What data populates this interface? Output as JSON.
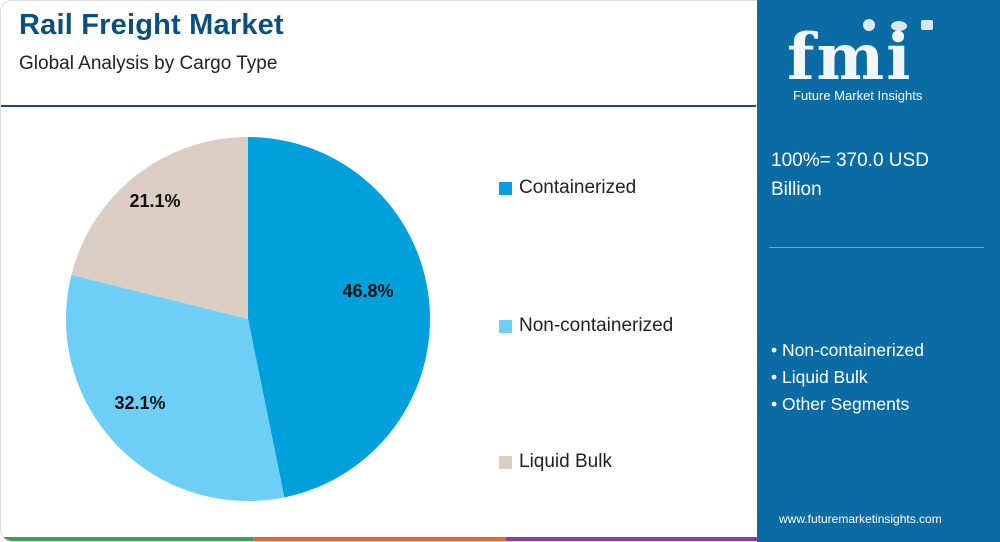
{
  "header": {
    "title": "Rail Freight Market",
    "subtitle": "Global Analysis by Cargo Type"
  },
  "chart_data": {
    "type": "pie",
    "title": "Rail Freight Market",
    "subtitle": "Global Analysis by Cargo Type",
    "categories": [
      "Containerized",
      "Non-containerized",
      "Liquid Bulk"
    ],
    "values": [
      46.8,
      32.1,
      21.1
    ],
    "value_labels": [
      "46.8%",
      "32.1%",
      "21.1%"
    ],
    "colors": [
      "#00a0dc",
      "#6dcff6",
      "#d9cdc4"
    ],
    "legend_position": "right",
    "start": "top, clockwise"
  },
  "sidebar": {
    "brand_mark": "fmi",
    "brand_name": "Future Market Insights",
    "total_line1": "100%= 370.0 USD",
    "total_line2": "Billion",
    "segments": [
      "• Non-containerized",
      "• Liquid Bulk",
      "• Other Segments"
    ],
    "website": "www.futuremarketinsights.com",
    "background": "#0b6ba4"
  },
  "stripe_colors": [
    "#3aa05a",
    "#e06b2a",
    "#8a3f9a"
  ]
}
